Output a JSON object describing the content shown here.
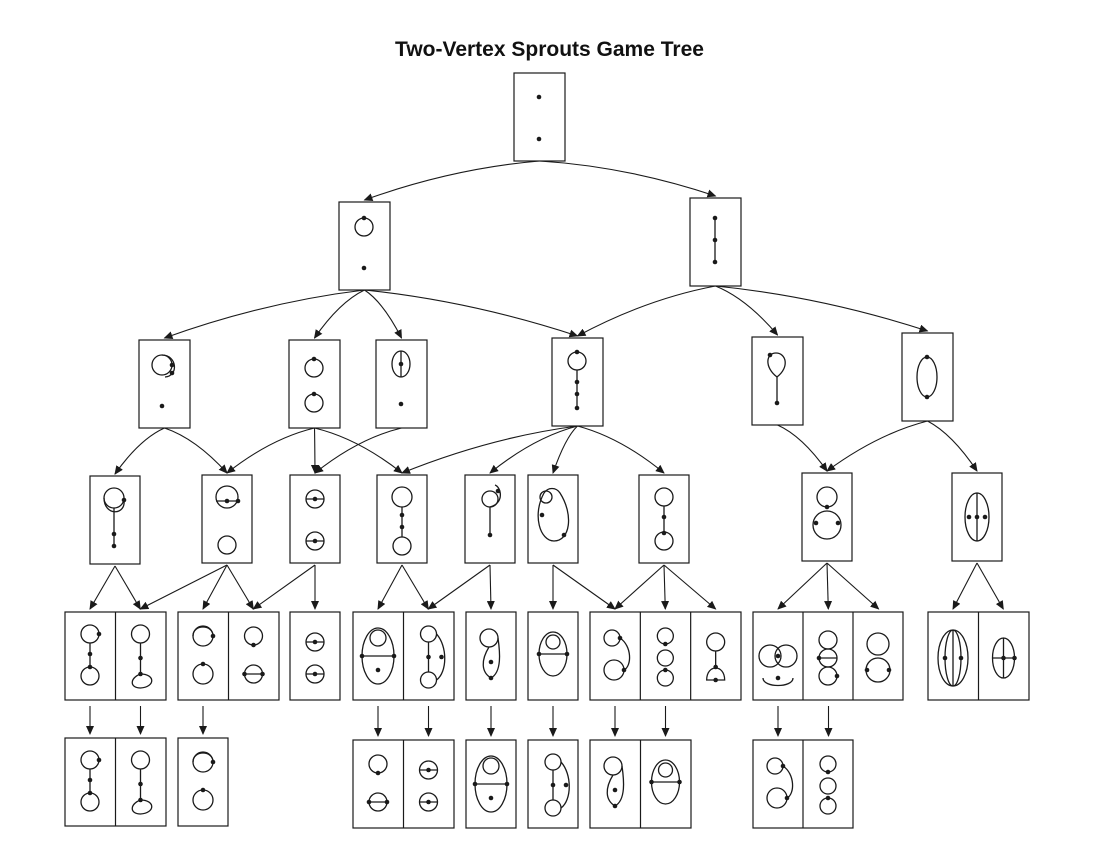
{
  "title": "Two-Vertex Sprouts Game Tree",
  "colors": {
    "ink": "#1a1a1a",
    "paper": "#ffffff"
  },
  "levels": [
    [
      {
        "id": "r0",
        "sketch": "two-dots"
      }
    ],
    [
      {
        "id": "a0",
        "sketch": "loop-and-dot"
      },
      {
        "id": "a1",
        "sketch": "line-segment"
      }
    ],
    [
      {
        "id": "b0",
        "sketch": "double-loop-and-dot"
      },
      {
        "id": "b1",
        "sketch": "two-circles"
      },
      {
        "id": "b2",
        "sketch": "split-circle-and-dot"
      },
      {
        "id": "b3",
        "sketch": "circle-on-stick"
      },
      {
        "id": "b4",
        "sketch": "teardrop-stick"
      },
      {
        "id": "b5",
        "sketch": "oval"
      }
    ],
    [
      {
        "id": "c0",
        "sketch": "hooded-circle-stick"
      },
      {
        "id": "c1",
        "sketch": "split-circle-over-circle"
      },
      {
        "id": "c2",
        "sketch": "chorded-circles"
      },
      {
        "id": "c3",
        "sketch": "dumbbell"
      },
      {
        "id": "c4",
        "sketch": "hooked-stick"
      },
      {
        "id": "c5",
        "sketch": "open-oval"
      },
      {
        "id": "c6",
        "sketch": "dumbbell-tall"
      },
      {
        "id": "c7",
        "sketch": "snowman"
      },
      {
        "id": "c8",
        "sketch": "split-oval"
      }
    ],
    [
      {
        "id": "d0",
        "sketch": "pair"
      },
      {
        "id": "d1",
        "sketch": "pair"
      },
      {
        "id": "d2",
        "sketch": "single"
      },
      {
        "id": "d3",
        "sketch": "pair"
      },
      {
        "id": "d4",
        "sketch": "single"
      },
      {
        "id": "d5",
        "sketch": "single"
      },
      {
        "id": "d6",
        "sketch": "triple"
      },
      {
        "id": "d7",
        "sketch": "triple"
      },
      {
        "id": "d8",
        "sketch": "pair"
      }
    ],
    [
      {
        "id": "e0",
        "sketch": "pair"
      },
      {
        "id": "e1",
        "sketch": "single"
      },
      {
        "id": "e2",
        "sketch": "pair"
      },
      {
        "id": "e3",
        "sketch": "single"
      },
      {
        "id": "e4",
        "sketch": "single"
      },
      {
        "id": "e5",
        "sketch": "pair"
      },
      {
        "id": "e6",
        "sketch": "pair"
      }
    ]
  ],
  "edges": [
    [
      "r0",
      "a0"
    ],
    [
      "r0",
      "a1"
    ],
    [
      "a0",
      "b0"
    ],
    [
      "a0",
      "b1"
    ],
    [
      "a0",
      "b2"
    ],
    [
      "a0",
      "b3"
    ],
    [
      "a1",
      "b3"
    ],
    [
      "a1",
      "b4"
    ],
    [
      "a1",
      "b5"
    ],
    [
      "b0",
      "c0"
    ],
    [
      "b0",
      "c1"
    ],
    [
      "b1",
      "c1"
    ],
    [
      "b1",
      "c2"
    ],
    [
      "b1",
      "c3"
    ],
    [
      "b2",
      "c2"
    ],
    [
      "b3",
      "c3"
    ],
    [
      "b3",
      "c4"
    ],
    [
      "b3",
      "c5"
    ],
    [
      "b3",
      "c6"
    ],
    [
      "b4",
      "c7"
    ],
    [
      "b5",
      "c7"
    ],
    [
      "b5",
      "c8"
    ]
  ]
}
